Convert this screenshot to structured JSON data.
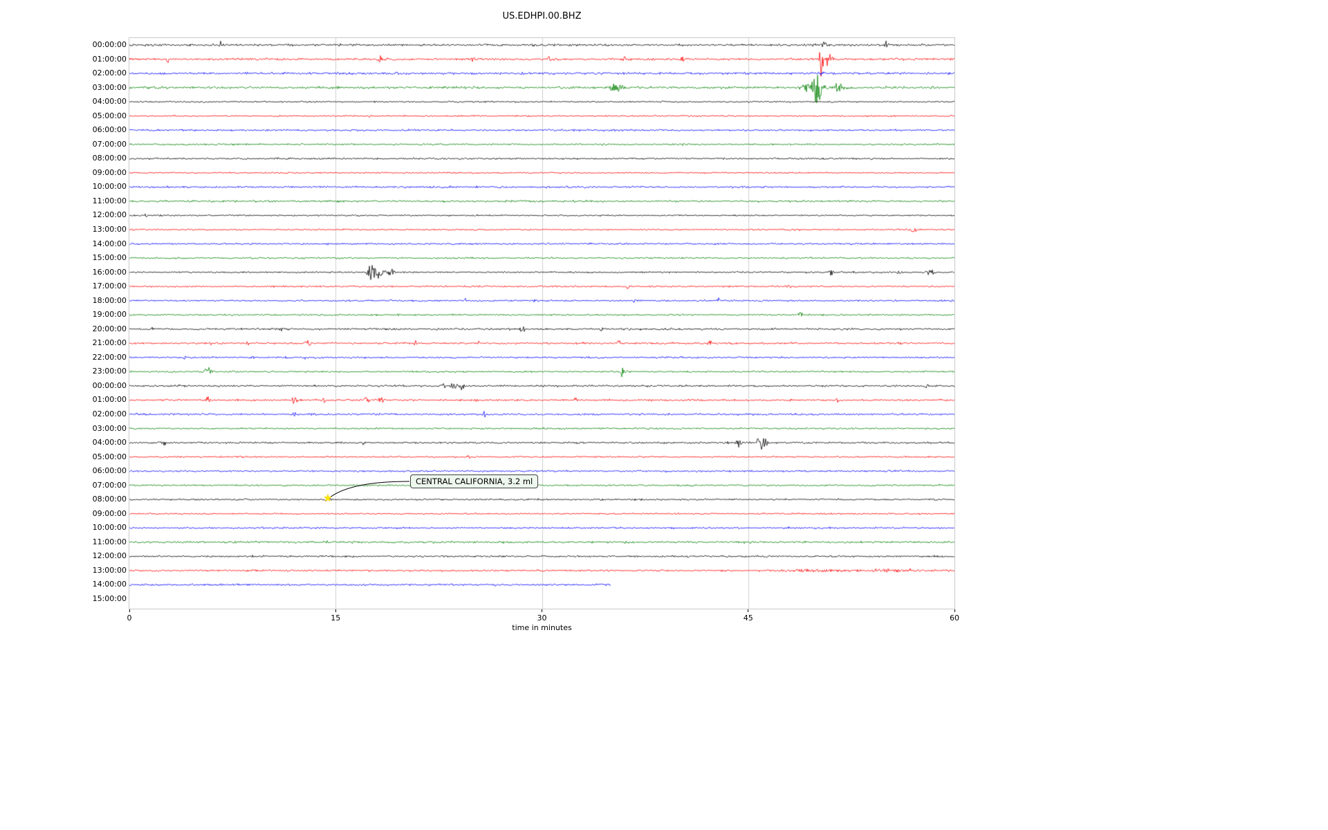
{
  "chart_data": {
    "type": "line",
    "subtype": "seismogram-helicorder",
    "title": "US.EDHPI.00.BHZ",
    "xlabel": "time in minutes",
    "x_ticks": [
      0,
      15,
      30,
      45,
      60
    ],
    "x_range": [
      0,
      60
    ],
    "grid": "vertical-light",
    "palette": {
      "black": "#000000",
      "red": "#ff0000",
      "blue": "#0000ff",
      "green": "#008000"
    },
    "annotation": {
      "text": "CENTRAL CALIFORNIA, 3.2 ml",
      "row_index": 32,
      "row_label": "08:00:00",
      "minute": 14.5,
      "marker": "star",
      "marker_color": "#ffe400"
    },
    "rows": [
      {
        "label": "00:00:00",
        "color": "black",
        "duration_min": 60,
        "base_amp": 2.3,
        "events": [
          {
            "m": 6.6,
            "a": 8,
            "w": 0.08
          },
          {
            "m": 50.5,
            "a": 4,
            "w": 0.3
          },
          {
            "m": 55.0,
            "a": 7,
            "w": 0.1
          }
        ]
      },
      {
        "label": "01:00:00",
        "color": "red",
        "duration_min": 60,
        "base_amp": 2.3,
        "events": [
          {
            "m": 2.8,
            "a": 5,
            "w": 0.1
          },
          {
            "m": 18.2,
            "a": 6,
            "w": 0.15
          },
          {
            "m": 25.0,
            "a": 8,
            "w": 0.1
          },
          {
            "m": 30.5,
            "a": 4,
            "w": 0.1
          },
          {
            "m": 36.0,
            "a": 5,
            "w": 0.12
          },
          {
            "m": 40.2,
            "a": 5,
            "w": 0.1
          },
          {
            "m": 50.3,
            "a": 30,
            "w": 0.12
          },
          {
            "m": 50.8,
            "a": 12,
            "w": 0.3
          }
        ]
      },
      {
        "label": "02:00:00",
        "color": "blue",
        "duration_min": 60,
        "base_amp": 2.4,
        "events": [
          {
            "m": 19.5,
            "a": 5,
            "w": 0.12
          },
          {
            "m": 50.3,
            "a": 5,
            "w": 0.2
          }
        ]
      },
      {
        "label": "03:00:00",
        "color": "green",
        "duration_min": 60,
        "base_amp": 2.4,
        "events": [
          {
            "m": 35.4,
            "a": 9,
            "w": 0.5
          },
          {
            "m": 49.7,
            "a": 8,
            "w": 0.8
          },
          {
            "m": 50.0,
            "a": 16,
            "w": 0.4
          },
          {
            "m": 51.6,
            "a": 10,
            "w": 0.3
          }
        ]
      },
      {
        "label": "04:00:00",
        "color": "black",
        "duration_min": 60,
        "base_amp": 1.6,
        "events": []
      },
      {
        "label": "05:00:00",
        "color": "red",
        "duration_min": 60,
        "base_amp": 1.6,
        "events": [
          {
            "m": 17.5,
            "a": 3,
            "w": 0.1
          }
        ]
      },
      {
        "label": "06:00:00",
        "color": "blue",
        "duration_min": 60,
        "base_amp": 2.0,
        "events": [
          {
            "m": 18.0,
            "a": 3,
            "w": 0.15
          }
        ]
      },
      {
        "label": "07:00:00",
        "color": "green",
        "duration_min": 60,
        "base_amp": 1.8,
        "events": []
      },
      {
        "label": "08:00:00",
        "color": "black",
        "duration_min": 60,
        "base_amp": 1.8,
        "events": []
      },
      {
        "label": "09:00:00",
        "color": "red",
        "duration_min": 60,
        "base_amp": 1.5,
        "events": []
      },
      {
        "label": "10:00:00",
        "color": "blue",
        "duration_min": 60,
        "base_amp": 2.0,
        "events": []
      },
      {
        "label": "11:00:00",
        "color": "green",
        "duration_min": 60,
        "base_amp": 2.0,
        "events": []
      },
      {
        "label": "12:00:00",
        "color": "black",
        "duration_min": 60,
        "base_amp": 1.6,
        "events": [
          {
            "m": 1.2,
            "a": 3,
            "w": 0.1
          }
        ]
      },
      {
        "label": "13:00:00",
        "color": "red",
        "duration_min": 60,
        "base_amp": 1.6,
        "events": [
          {
            "m": 48.5,
            "a": 3,
            "w": 0.3
          },
          {
            "m": 57.0,
            "a": 3,
            "w": 0.3
          }
        ]
      },
      {
        "label": "14:00:00",
        "color": "blue",
        "duration_min": 60,
        "base_amp": 1.8,
        "events": []
      },
      {
        "label": "15:00:00",
        "color": "green",
        "duration_min": 60,
        "base_amp": 1.8,
        "events": []
      },
      {
        "label": "16:00:00",
        "color": "black",
        "duration_min": 60,
        "base_amp": 1.8,
        "events": [
          {
            "m": 17.5,
            "a": 13,
            "w": 0.25
          },
          {
            "m": 18.1,
            "a": 9,
            "w": 0.4
          },
          {
            "m": 19.0,
            "a": 5,
            "w": 0.3
          },
          {
            "m": 51.0,
            "a": 5,
            "w": 0.2
          },
          {
            "m": 56.0,
            "a": 3,
            "w": 0.2
          },
          {
            "m": 58.3,
            "a": 5,
            "w": 0.25
          }
        ]
      },
      {
        "label": "17:00:00",
        "color": "red",
        "duration_min": 60,
        "base_amp": 1.8,
        "events": [
          {
            "m": 36.2,
            "a": 5,
            "w": 0.12
          },
          {
            "m": 48.0,
            "a": 3,
            "w": 0.15
          }
        ]
      },
      {
        "label": "18:00:00",
        "color": "blue",
        "duration_min": 60,
        "base_amp": 1.8,
        "events": [
          {
            "m": 24.4,
            "a": 5,
            "w": 0.1
          },
          {
            "m": 29.4,
            "a": 4,
            "w": 0.1
          },
          {
            "m": 36.7,
            "a": 6,
            "w": 0.1
          },
          {
            "m": 42.8,
            "a": 5,
            "w": 0.12
          }
        ]
      },
      {
        "label": "19:00:00",
        "color": "green",
        "duration_min": 60,
        "base_amp": 1.8,
        "events": [
          {
            "m": 48.7,
            "a": 4,
            "w": 0.3
          }
        ]
      },
      {
        "label": "20:00:00",
        "color": "black",
        "duration_min": 60,
        "base_amp": 2.0,
        "events": [
          {
            "m": 1.5,
            "a": 3,
            "w": 0.2
          },
          {
            "m": 11.0,
            "a": 5,
            "w": 0.12
          },
          {
            "m": 28.6,
            "a": 6,
            "w": 0.15
          },
          {
            "m": 34.3,
            "a": 4,
            "w": 0.1
          }
        ]
      },
      {
        "label": "21:00:00",
        "color": "red",
        "duration_min": 60,
        "base_amp": 2.0,
        "events": [
          {
            "m": 6.0,
            "a": 4,
            "w": 0.1
          },
          {
            "m": 8.6,
            "a": 4,
            "w": 0.1
          },
          {
            "m": 13.0,
            "a": 6,
            "w": 0.2
          },
          {
            "m": 20.8,
            "a": 4,
            "w": 0.12
          },
          {
            "m": 25.4,
            "a": 4,
            "w": 0.1
          },
          {
            "m": 35.6,
            "a": 5,
            "w": 0.12
          },
          {
            "m": 42.2,
            "a": 6,
            "w": 0.15
          }
        ]
      },
      {
        "label": "22:00:00",
        "color": "blue",
        "duration_min": 60,
        "base_amp": 1.8,
        "events": [
          {
            "m": 4.0,
            "a": 3,
            "w": 0.1
          },
          {
            "m": 9.0,
            "a": 3,
            "w": 0.1
          },
          {
            "m": 12.8,
            "a": 3,
            "w": 0.1
          }
        ]
      },
      {
        "label": "23:00:00",
        "color": "green",
        "duration_min": 60,
        "base_amp": 1.8,
        "events": [
          {
            "m": 5.7,
            "a": 6,
            "w": 0.25
          },
          {
            "m": 35.8,
            "a": 8,
            "w": 0.12
          },
          {
            "m": 36.1,
            "a": 6,
            "w": 0.1
          }
        ]
      },
      {
        "label": "00:00:00",
        "color": "black",
        "duration_min": 60,
        "base_amp": 2.0,
        "events": [
          {
            "m": 22.8,
            "a": 7,
            "w": 0.15
          },
          {
            "m": 23.5,
            "a": 4,
            "w": 0.4
          },
          {
            "m": 24.2,
            "a": 8,
            "w": 0.15
          },
          {
            "m": 58.0,
            "a": 4,
            "w": 0.12
          }
        ]
      },
      {
        "label": "01:00:00",
        "color": "red",
        "duration_min": 60,
        "base_amp": 2.0,
        "events": [
          {
            "m": 5.7,
            "a": 6,
            "w": 0.15
          },
          {
            "m": 12.0,
            "a": 7,
            "w": 0.2
          },
          {
            "m": 14.2,
            "a": 5,
            "w": 0.15
          },
          {
            "m": 17.3,
            "a": 8,
            "w": 0.2
          },
          {
            "m": 18.3,
            "a": 7,
            "w": 0.15
          },
          {
            "m": 25.3,
            "a": 6,
            "w": 0.15
          },
          {
            "m": 32.5,
            "a": 4,
            "w": 0.12
          },
          {
            "m": 51.5,
            "a": 4,
            "w": 0.15
          }
        ]
      },
      {
        "label": "02:00:00",
        "color": "blue",
        "duration_min": 60,
        "base_amp": 2.0,
        "events": [
          {
            "m": 12.0,
            "a": 4,
            "w": 0.12
          },
          {
            "m": 25.8,
            "a": 6,
            "w": 0.1
          }
        ]
      },
      {
        "label": "03:00:00",
        "color": "green",
        "duration_min": 60,
        "base_amp": 1.8,
        "events": []
      },
      {
        "label": "04:00:00",
        "color": "black",
        "duration_min": 60,
        "base_amp": 2.0,
        "events": [
          {
            "m": 2.5,
            "a": 4,
            "w": 0.2
          },
          {
            "m": 17.0,
            "a": 3,
            "w": 0.1
          },
          {
            "m": 44.3,
            "a": 7,
            "w": 0.2
          },
          {
            "m": 45.8,
            "a": 12,
            "w": 0.15
          },
          {
            "m": 46.1,
            "a": 8,
            "w": 0.3
          }
        ]
      },
      {
        "label": "05:00:00",
        "color": "red",
        "duration_min": 60,
        "base_amp": 1.7,
        "events": [
          {
            "m": 24.7,
            "a": 4,
            "w": 0.1
          }
        ]
      },
      {
        "label": "06:00:00",
        "color": "blue",
        "duration_min": 60,
        "base_amp": 1.9,
        "events": []
      },
      {
        "label": "07:00:00",
        "color": "green",
        "duration_min": 60,
        "base_amp": 1.8,
        "events": []
      },
      {
        "label": "08:00:00",
        "color": "black",
        "duration_min": 60,
        "base_amp": 1.8,
        "events": [
          {
            "m": 14.5,
            "a": 3,
            "w": 0.2
          }
        ]
      },
      {
        "label": "09:00:00",
        "color": "red",
        "duration_min": 60,
        "base_amp": 1.6,
        "events": []
      },
      {
        "label": "10:00:00",
        "color": "blue",
        "duration_min": 60,
        "base_amp": 1.9,
        "events": []
      },
      {
        "label": "11:00:00",
        "color": "green",
        "duration_min": 60,
        "base_amp": 2.2,
        "events": []
      },
      {
        "label": "12:00:00",
        "color": "black",
        "duration_min": 60,
        "base_amp": 1.9,
        "events": []
      },
      {
        "label": "13:00:00",
        "color": "red",
        "duration_min": 60,
        "base_amp": 1.9,
        "events": [
          {
            "m": 50.0,
            "a": 2,
            "w": 3.0
          },
          {
            "m": 56.0,
            "a": 2,
            "w": 2.0
          }
        ]
      },
      {
        "label": "14:00:00",
        "color": "blue",
        "duration_min": 35,
        "base_amp": 2.0,
        "events": []
      },
      {
        "label": "15:00:00",
        "color": "green",
        "duration_min": 0,
        "base_amp": 0,
        "events": []
      }
    ]
  }
}
